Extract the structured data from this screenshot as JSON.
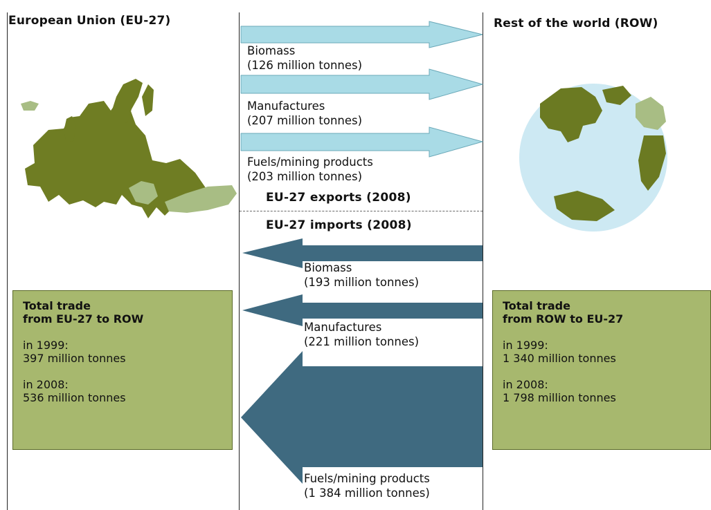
{
  "left_region": {
    "title": "European Union (EU-27)"
  },
  "right_region": {
    "title": "Rest of the world (ROW)"
  },
  "exports": {
    "section_title": "EU-27 exports (2008)",
    "flows": [
      {
        "label": "Biomass",
        "amount": "(126 million tonnes)"
      },
      {
        "label": "Manufactures",
        "amount": "(207 million tonnes)"
      },
      {
        "label": "Fuels/mining products",
        "amount": "(203 million tonnes)"
      }
    ]
  },
  "imports": {
    "section_title": "EU-27 imports (2008)",
    "flows": [
      {
        "label": "Biomass",
        "amount": "(193 million tonnes)"
      },
      {
        "label": "Manufactures",
        "amount": "(221 million tonnes)"
      },
      {
        "label": "Fuels/mining products",
        "amount": "(1 384 million tonnes)"
      }
    ]
  },
  "totals": {
    "eu_to_row": {
      "title_line1": "Total trade",
      "title_line2": "from EU-27 to ROW",
      "y1999_label": "in 1999:",
      "y1999_value": "397 million tonnes",
      "y2008_label": "in 2008:",
      "y2008_value": "536 million tonnes"
    },
    "row_to_eu": {
      "title_line1": "Total trade",
      "title_line2": "from ROW to EU-27",
      "y1999_label": "in 1999:",
      "y1999_value": "1 340 million tonnes",
      "y2008_label": "in 2008:",
      "y2008_value": "1 798 million tonnes"
    }
  },
  "colors": {
    "export_arrow": "#a9dbe6",
    "import_arrow": "#3f6a80",
    "eu_map": "#6f7d23",
    "eu_map_light": "#a8bd84",
    "globe_ocean": "#cde9f3",
    "globe_land": "#6b7a22",
    "total_box": "#a7b86e"
  }
}
